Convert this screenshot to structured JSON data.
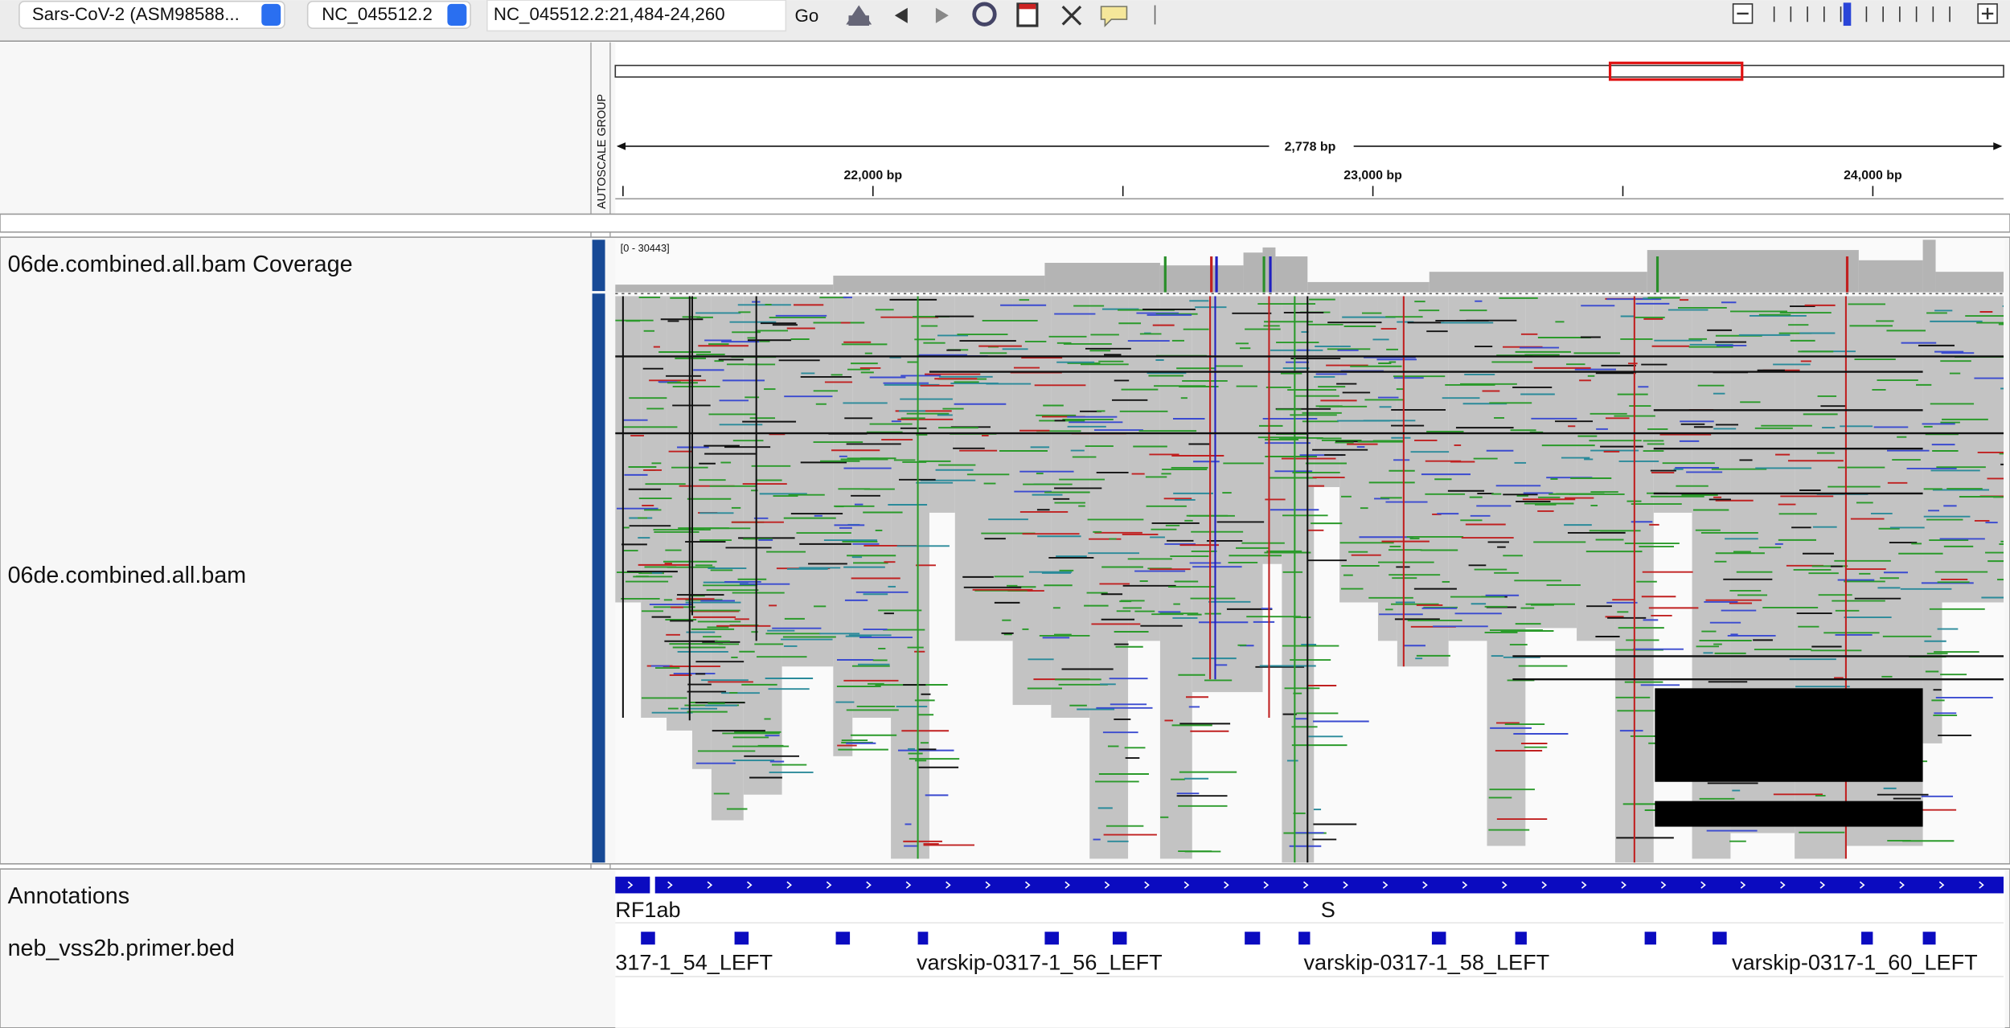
{
  "toolbar": {
    "genome": "Sars-CoV-2 (ASM98588...",
    "chromosome": "NC_045512.2",
    "locus": "NC_045512.2:21,484-24,260",
    "go": "Go"
  },
  "ruler": {
    "attribute": "AUTOSCALE GROUP",
    "span": "2,778 bp",
    "ticks": [
      "22,000 bp",
      "23,000 bp",
      "24,000 bp"
    ]
  },
  "tracks": {
    "coverage": {
      "name": "06de.combined.all.bam Coverage",
      "range": "[0 - 30443]"
    },
    "alignments": {
      "name": "06de.combined.all.bam"
    }
  },
  "annotations": {
    "name": "Annotations",
    "genes": [
      "RF1ab",
      "S"
    ],
    "primer_track": "neb_vss2b.primer.bed",
    "primers": [
      "317-1_54_LEFT",
      "varskip-0317-1_56_LEFT",
      "varskip-0317-1_58_LEFT",
      "varskip-0317-1_60_LEFT"
    ]
  }
}
